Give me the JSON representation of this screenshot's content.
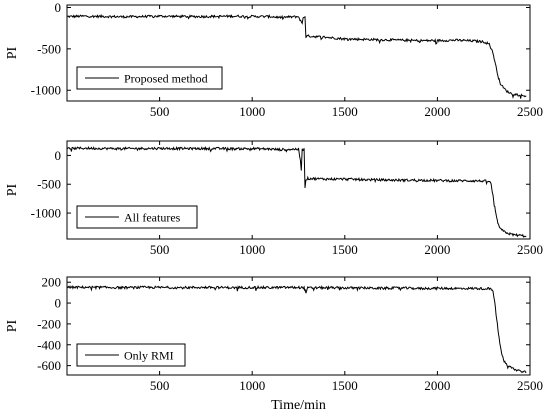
{
  "chart_data": [
    {
      "type": "line",
      "ylabel": "PI",
      "xlabel": "",
      "xlim": [
        0,
        2500
      ],
      "ylim": [
        -1130,
        30
      ],
      "xticks": [
        500,
        1000,
        1500,
        2000,
        2500
      ],
      "yticks": [
        0,
        -500,
        -1000
      ],
      "legend": {
        "label": "Proposed method",
        "position": "bottom-left"
      },
      "series": [
        {
          "name": "Proposed method",
          "x": [
            0,
            100,
            200,
            300,
            400,
            500,
            600,
            700,
            800,
            900,
            1000,
            1100,
            1150,
            1200,
            1250,
            1270,
            1275,
            1280,
            1285,
            1290,
            1300,
            1400,
            1500,
            1600,
            1700,
            1800,
            1900,
            2000,
            2100,
            2200,
            2250,
            2280,
            2300,
            2310,
            2320,
            2330,
            2340,
            2360,
            2380,
            2400,
            2420,
            2450,
            2480
          ],
          "y": [
            -110,
            -105,
            -108,
            -112,
            -110,
            -105,
            -108,
            -110,
            -108,
            -105,
            -108,
            -110,
            -120,
            -115,
            -110,
            -200,
            -120,
            -115,
            -110,
            -350,
            -345,
            -360,
            -380,
            -385,
            -390,
            -395,
            -400,
            -400,
            -395,
            -405,
            -415,
            -440,
            -550,
            -650,
            -750,
            -850,
            -920,
            -980,
            -1020,
            -1040,
            -1050,
            -1060,
            -1070
          ]
        }
      ]
    },
    {
      "type": "line",
      "ylabel": "PI",
      "xlabel": "",
      "xlim": [
        0,
        2500
      ],
      "ylim": [
        -1450,
        250
      ],
      "xticks": [
        500,
        1000,
        1500,
        2000,
        2500
      ],
      "yticks": [
        0,
        -500,
        -1000
      ],
      "legend": {
        "label": "All features",
        "position": "bottom-left"
      },
      "series": [
        {
          "name": "All features",
          "x": [
            0,
            100,
            200,
            300,
            400,
            500,
            600,
            700,
            800,
            900,
            1000,
            1100,
            1150,
            1200,
            1250,
            1260,
            1265,
            1270,
            1280,
            1285,
            1290,
            1300,
            1400,
            1500,
            1600,
            1700,
            1800,
            1900,
            2000,
            2100,
            2200,
            2250,
            2280,
            2290,
            2300,
            2310,
            2320,
            2330,
            2340,
            2360,
            2380,
            2400,
            2420,
            2450,
            2480
          ],
          "y": [
            120,
            125,
            120,
            118,
            120,
            122,
            120,
            118,
            120,
            115,
            118,
            110,
            100,
            105,
            110,
            -80,
            -250,
            100,
            110,
            -550,
            -420,
            -400,
            -410,
            -410,
            -420,
            -425,
            -430,
            -430,
            -435,
            -440,
            -440,
            -445,
            -450,
            -500,
            -700,
            -900,
            -1100,
            -1200,
            -1280,
            -1320,
            -1350,
            -1370,
            -1380,
            -1390,
            -1400
          ]
        }
      ]
    },
    {
      "type": "line",
      "ylabel": "PI",
      "xlabel": "Time/min",
      "xlim": [
        0,
        2500
      ],
      "ylim": [
        -690,
        250
      ],
      "xticks": [
        500,
        1000,
        1500,
        2000,
        2500
      ],
      "yticks": [
        200,
        0,
        -200,
        -400,
        -600
      ],
      "legend": {
        "label": "Only RMI",
        "position": "bottom-left"
      },
      "series": [
        {
          "name": "Only RMI",
          "x": [
            0,
            100,
            200,
            300,
            400,
            500,
            600,
            700,
            800,
            900,
            1000,
            1100,
            1200,
            1280,
            1290,
            1300,
            1400,
            1500,
            1600,
            1700,
            1800,
            1900,
            2000,
            2100,
            2200,
            2280,
            2300,
            2310,
            2320,
            2330,
            2340,
            2350,
            2360,
            2380,
            2400,
            2420,
            2450,
            2480
          ],
          "y": [
            150,
            152,
            150,
            148,
            150,
            150,
            148,
            150,
            150,
            148,
            150,
            148,
            150,
            148,
            100,
            145,
            148,
            145,
            145,
            142,
            145,
            140,
            142,
            140,
            140,
            138,
            120,
            0,
            -150,
            -300,
            -420,
            -500,
            -560,
            -600,
            -620,
            -640,
            -650,
            -660
          ]
        }
      ]
    }
  ]
}
